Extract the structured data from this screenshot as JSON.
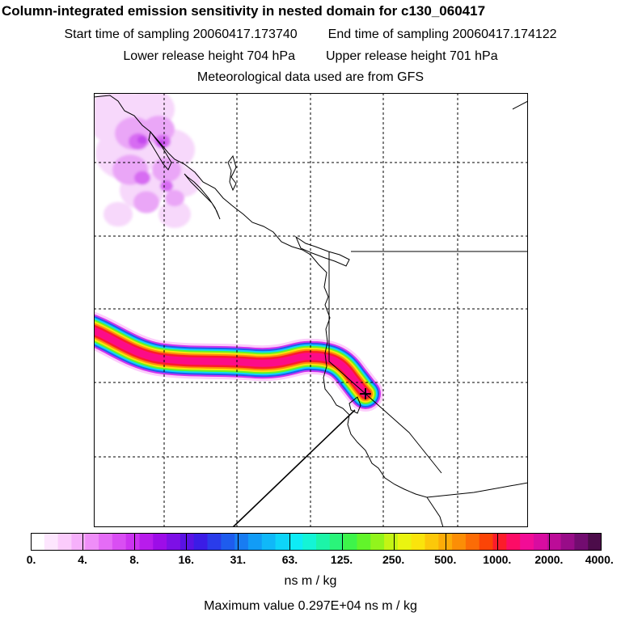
{
  "title": "Column-integrated emission sensitivity in nested domain for c130_060417",
  "sampling": {
    "start": "Start time of sampling 20060417.173740",
    "end": "End time of sampling 20060417.174122"
  },
  "release": {
    "lower": "Lower release height  704 hPa",
    "upper": "Upper release height  701 hPa"
  },
  "met_note": "Meteorological data used are from GFS",
  "colorbar": {
    "tick_labels": [
      "0.",
      "4.",
      "8.",
      "16.",
      "31.",
      "63.",
      "125.",
      "250.",
      "500.",
      "1000.",
      "2000.",
      "4000."
    ],
    "colors": [
      "#ffffff",
      "#fde6fe",
      "#fbccfc",
      "#f6b0fb",
      "#ef8ef8",
      "#e56cf6",
      "#d94ef3",
      "#cc33f0",
      "#b81cec",
      "#9d0de8",
      "#7d10e6",
      "#5a12e4",
      "#3b1ce6",
      "#2a3cea",
      "#1e5cee",
      "#187cf2",
      "#129cf6",
      "#10b8f8",
      "#0ed4f9",
      "#0eecf6",
      "#14f4d6",
      "#1cf4a8",
      "#2af47a",
      "#3ef44a",
      "#62f42a",
      "#92f41c",
      "#c4f414",
      "#eaf410",
      "#fae40c",
      "#fcc80a",
      "#fcac08",
      "#fc8e06",
      "#fc6c06",
      "#fc4406",
      "#fc1c2a",
      "#fc0c66",
      "#f20c96",
      "#d80ca0",
      "#bc0c98",
      "#980c88",
      "#720c70",
      "#4c0c4a"
    ],
    "units": "ns m / kg"
  },
  "max_value": "Maximum value  0.297E+04 ns m / kg",
  "map": {
    "receptor_marker": "+",
    "plume_colors": {
      "outer": "#fcccfb",
      "lavender": "#cc33f0",
      "blue": "#1e5cee",
      "cyan": "#0ed4f9",
      "green": "#62f42a",
      "yellow": "#fae40c",
      "orange": "#fc8e06",
      "red": "#fc1c2a",
      "core": "#fc0c88"
    },
    "nw_patch_colors": [
      "#f7d8fb",
      "#eaa6f7",
      "#d76cf2",
      "#c448ee"
    ],
    "gridline_color": "#000000",
    "coastline_color": "#000000"
  }
}
